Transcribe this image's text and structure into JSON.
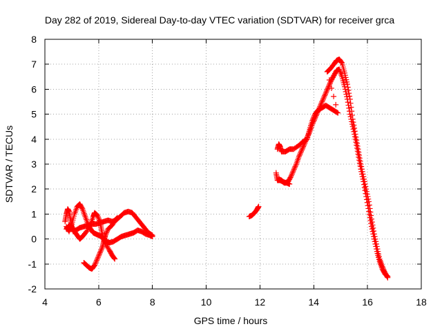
{
  "chart_data": {
    "type": "scatter",
    "title": "Day 282 of 2019, Sidereal Day-to-day VTEC variation (SDTVAR) for receiver grca",
    "xlabel": "GPS time / hours",
    "ylabel": "SDTVAR / TECUs",
    "xlim": [
      4,
      18
    ],
    "ylim": [
      -2,
      8
    ],
    "xticks": [
      4,
      6,
      8,
      10,
      12,
      14,
      16,
      18
    ],
    "yticks": [
      -2,
      -1,
      0,
      1,
      2,
      3,
      4,
      5,
      6,
      7,
      8
    ],
    "grid": true,
    "marker": "+",
    "series_color": "#ff0000",
    "series": [
      {
        "name": "grca",
        "segments": [
          [
            [
              4.75,
              0.7
            ],
            [
              4.8,
              1.0
            ],
            [
              4.85,
              1.2
            ],
            [
              4.9,
              1.1
            ],
            [
              4.95,
              0.8
            ],
            [
              5.0,
              0.5
            ],
            [
              5.05,
              0.3
            ],
            [
              5.15,
              0.35
            ],
            [
              5.3,
              0.45
            ],
            [
              5.45,
              0.5
            ],
            [
              5.6,
              0.55
            ],
            [
              5.75,
              0.6
            ],
            [
              5.9,
              0.6
            ],
            [
              6.05,
              0.65
            ],
            [
              6.2,
              0.7
            ],
            [
              6.35,
              0.75
            ],
            [
              6.5,
              0.7
            ],
            [
              6.65,
              0.75
            ],
            [
              6.8,
              0.9
            ],
            [
              6.95,
              1.05
            ],
            [
              7.1,
              1.1
            ],
            [
              7.25,
              1.05
            ],
            [
              7.4,
              0.85
            ],
            [
              7.55,
              0.65
            ],
            [
              7.7,
              0.45
            ],
            [
              7.85,
              0.25
            ],
            [
              8.0,
              0.15
            ]
          ],
          [
            [
              4.8,
              0.5
            ],
            [
              4.9,
              0.3
            ],
            [
              5.0,
              0.6
            ],
            [
              5.1,
              1.0
            ],
            [
              5.2,
              1.3
            ],
            [
              5.3,
              1.4
            ],
            [
              5.4,
              1.2
            ],
            [
              5.5,
              0.9
            ],
            [
              5.6,
              0.6
            ],
            [
              5.7,
              0.4
            ],
            [
              5.8,
              0.25
            ],
            [
              5.9,
              0.2
            ],
            [
              6.0,
              0.15
            ],
            [
              6.1,
              0.1
            ],
            [
              6.2,
              0.0
            ],
            [
              6.3,
              -0.1
            ],
            [
              6.4,
              -0.15
            ],
            [
              6.55,
              -0.1
            ],
            [
              6.7,
              0.0
            ],
            [
              6.85,
              0.1
            ],
            [
              7.0,
              0.15
            ],
            [
              7.15,
              0.2
            ],
            [
              7.3,
              0.25
            ],
            [
              7.45,
              0.35
            ],
            [
              7.6,
              0.3
            ],
            [
              7.75,
              0.2
            ],
            [
              7.9,
              0.15
            ],
            [
              8.0,
              0.1
            ]
          ],
          [
            [
              4.8,
              0.4
            ],
            [
              4.9,
              0.55
            ],
            [
              5.0,
              0.5
            ],
            [
              5.1,
              0.3
            ],
            [
              5.2,
              0.15
            ],
            [
              5.3,
              0.0
            ],
            [
              5.4,
              0.1
            ],
            [
              5.55,
              0.3
            ],
            [
              5.7,
              0.6
            ],
            [
              5.8,
              0.9
            ],
            [
              5.85,
              1.05
            ],
            [
              5.95,
              0.95
            ],
            [
              6.05,
              0.7
            ],
            [
              6.1,
              0.4
            ],
            [
              6.15,
              0.1
            ],
            [
              6.25,
              -0.2
            ],
            [
              6.4,
              -0.45
            ],
            [
              6.5,
              -0.65
            ],
            [
              6.6,
              -0.8
            ]
          ],
          [
            [
              5.45,
              -0.95
            ],
            [
              5.55,
              -1.05
            ],
            [
              5.65,
              -1.15
            ],
            [
              5.75,
              -1.2
            ],
            [
              5.85,
              -1.05
            ],
            [
              5.95,
              -0.8
            ],
            [
              6.05,
              -0.55
            ],
            [
              6.15,
              -0.3
            ],
            [
              6.2,
              -0.05
            ],
            [
              6.25,
              0.15
            ],
            [
              6.35,
              0.4
            ],
            [
              6.5,
              0.55
            ],
            [
              6.6,
              0.75
            ],
            [
              6.7,
              0.85
            ]
          ],
          [
            [
              11.6,
              0.9
            ],
            [
              11.7,
              0.95
            ],
            [
              11.8,
              1.05
            ],
            [
              11.9,
              1.2
            ],
            [
              11.95,
              1.3
            ]
          ],
          [
            [
              12.6,
              2.65
            ],
            [
              12.65,
              2.35
            ],
            [
              12.75,
              2.35
            ],
            [
              12.85,
              2.3
            ],
            [
              12.95,
              2.25
            ],
            [
              13.05,
              2.3
            ],
            [
              13.15,
              2.5
            ],
            [
              13.25,
              2.75
            ],
            [
              13.35,
              3.0
            ],
            [
              13.45,
              3.3
            ],
            [
              13.55,
              3.55
            ],
            [
              13.65,
              3.8
            ],
            [
              13.75,
              4.05
            ],
            [
              13.85,
              4.3
            ],
            [
              13.95,
              4.6
            ],
            [
              14.05,
              4.85
            ],
            [
              14.15,
              5.1
            ],
            [
              14.25,
              5.35
            ],
            [
              14.35,
              5.6
            ],
            [
              14.45,
              5.85
            ],
            [
              14.55,
              6.1
            ],
            [
              14.65,
              6.35
            ],
            [
              14.75,
              6.55
            ],
            [
              14.85,
              6.75
            ],
            [
              14.95,
              6.8
            ],
            [
              15.05,
              6.5
            ],
            [
              15.15,
              6.1
            ],
            [
              15.25,
              5.6
            ],
            [
              15.35,
              5.0
            ],
            [
              15.45,
              4.5
            ],
            [
              15.55,
              4.0
            ],
            [
              15.65,
              3.4
            ],
            [
              15.75,
              2.8
            ],
            [
              15.85,
              2.3
            ],
            [
              15.95,
              1.7
            ],
            [
              16.05,
              1.1
            ],
            [
              16.15,
              0.5
            ],
            [
              16.25,
              0.0
            ],
            [
              16.35,
              -0.5
            ],
            [
              16.45,
              -0.9
            ],
            [
              16.55,
              -1.2
            ],
            [
              16.65,
              -1.4
            ],
            [
              16.75,
              -1.5
            ]
          ],
          [
            [
              12.65,
              3.6
            ],
            [
              12.7,
              3.8
            ],
            [
              12.75,
              3.7
            ],
            [
              12.8,
              3.5
            ],
            [
              12.95,
              3.5
            ],
            [
              13.1,
              3.6
            ],
            [
              13.25,
              3.6
            ],
            [
              13.45,
              3.75
            ],
            [
              13.6,
              3.9
            ],
            [
              13.75,
              4.0
            ],
            [
              13.85,
              4.4
            ],
            [
              13.95,
              4.75
            ],
            [
              14.05,
              5.0
            ],
            [
              14.15,
              5.15
            ],
            [
              14.3,
              5.25
            ],
            [
              14.45,
              5.35
            ],
            [
              14.6,
              5.25
            ],
            [
              14.75,
              5.15
            ],
            [
              14.9,
              5.05
            ],
            [
              14.5,
              6.7
            ],
            [
              14.6,
              6.8
            ],
            [
              14.75,
              7.0
            ],
            [
              14.85,
              7.15
            ],
            [
              14.95,
              7.2
            ],
            [
              15.05,
              7.05
            ],
            [
              15.15,
              6.65
            ],
            [
              15.25,
              6.2
            ],
            [
              15.35,
              5.6
            ],
            [
              15.45,
              4.8
            ],
            [
              15.55,
              4.2
            ],
            [
              15.65,
              3.6
            ],
            [
              15.75,
              3.0
            ],
            [
              15.85,
              2.5
            ],
            [
              15.95,
              2.0
            ],
            [
              16.05,
              1.5
            ],
            [
              16.15,
              0.8
            ],
            [
              16.25,
              0.2
            ],
            [
              16.35,
              -0.3
            ],
            [
              16.45,
              -0.8
            ],
            [
              16.55,
              -1.1
            ],
            [
              16.65,
              -1.35
            ],
            [
              16.75,
              -1.55
            ]
          ],
          [
            [
              12.7,
              2.4
            ],
            [
              12.8,
              2.35
            ],
            [
              12.9,
              2.25
            ],
            [
              13.0,
              2.25
            ],
            [
              13.1,
              2.2
            ]
          ]
        ]
      }
    ]
  }
}
